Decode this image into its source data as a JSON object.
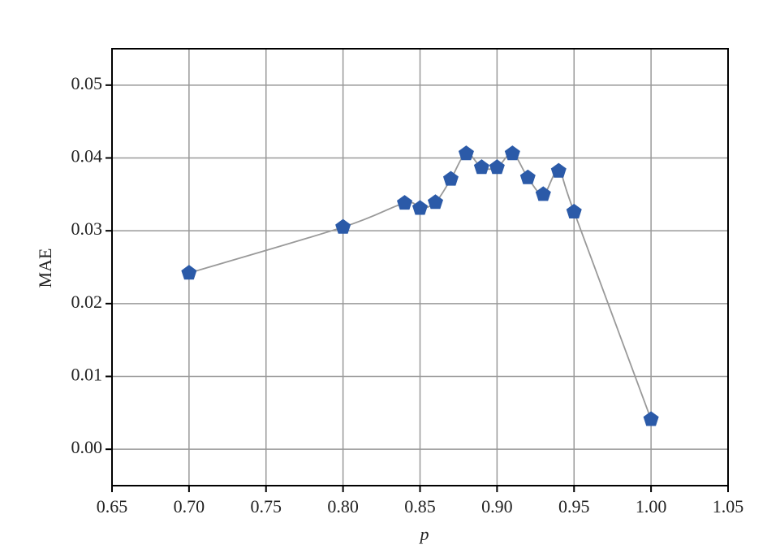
{
  "chart_data": {
    "type": "line",
    "xlabel": "p",
    "ylabel": "MAE",
    "x": [
      0.7,
      0.8,
      0.84,
      0.85,
      0.86,
      0.87,
      0.88,
      0.89,
      0.9,
      0.91,
      0.92,
      0.93,
      0.94,
      0.95,
      1.0
    ],
    "values": [
      0.0242,
      0.0305,
      0.0338,
      0.0331,
      0.0339,
      0.0371,
      0.0406,
      0.0387,
      0.0387,
      0.0406,
      0.0373,
      0.035,
      0.0382,
      0.0326,
      0.0041
    ],
    "color": "#2b5aa8",
    "line_color": "#999999",
    "marker": "pentagon",
    "smooth": true,
    "grid": true,
    "xlim": [
      0.65,
      1.05
    ],
    "xticks": [
      {
        "value": 0.65,
        "label": "0.65"
      },
      {
        "value": 0.7,
        "label": "0.70"
      },
      {
        "value": 0.75,
        "label": "0.75"
      },
      {
        "value": 0.8,
        "label": "0.80"
      },
      {
        "value": 0.85,
        "label": "0.85"
      },
      {
        "value": 0.9,
        "label": "0.90"
      },
      {
        "value": 0.95,
        "label": "0.95"
      },
      {
        "value": 1.0,
        "label": "1.00"
      },
      {
        "value": 1.05,
        "label": "1.05"
      }
    ],
    "ylim": [
      -0.005,
      0.055
    ],
    "yticks": [
      {
        "value": 0,
        "label": "0.00"
      },
      {
        "value": 0.01,
        "label": "0.01"
      },
      {
        "value": 0.02,
        "label": "0.02"
      },
      {
        "value": 0.03,
        "label": "0.03"
      },
      {
        "value": 0.04,
        "label": "0.04"
      },
      {
        "value": 0.05,
        "label": "0.05"
      }
    ]
  }
}
